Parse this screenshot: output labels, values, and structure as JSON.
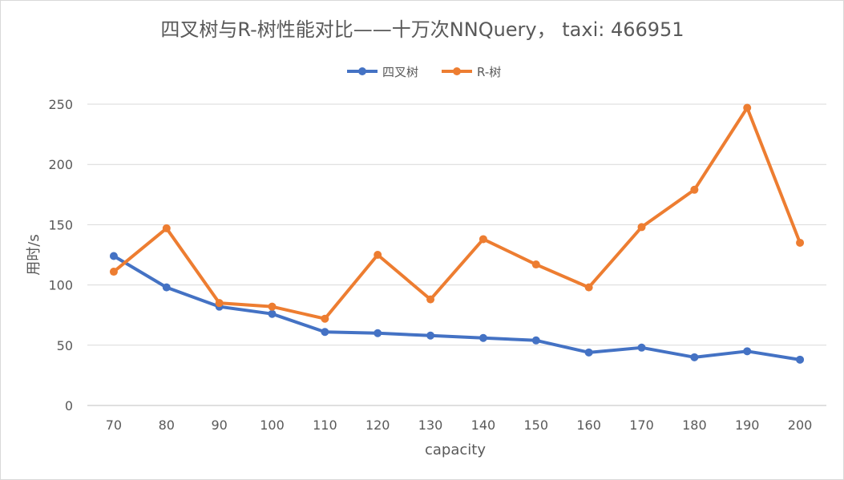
{
  "chart_data": {
    "type": "line",
    "title": "四叉树与R-树性能对比——十万次NNQuery，  taxi: 466951",
    "xlabel": "capacity",
    "ylabel": "用时/s",
    "categories": [
      "70",
      "80",
      "90",
      "100",
      "110",
      "120",
      "130",
      "140",
      "150",
      "160",
      "170",
      "180",
      "190",
      "200"
    ],
    "ylim": [
      0,
      250
    ],
    "yticks": [
      "0",
      "50",
      "100",
      "150",
      "200",
      "250"
    ],
    "grid": true,
    "legend_position": "top",
    "series": [
      {
        "name": "四叉树",
        "color": "#4472C4",
        "values": [
          124,
          98,
          82,
          76,
          61,
          60,
          58,
          56,
          54,
          44,
          48,
          40,
          45,
          38
        ]
      },
      {
        "name": "R-树",
        "color": "#ED7D31",
        "values": [
          111,
          147,
          85,
          82,
          72,
          125,
          88,
          138,
          117,
          98,
          148,
          179,
          247,
          135
        ]
      }
    ]
  }
}
